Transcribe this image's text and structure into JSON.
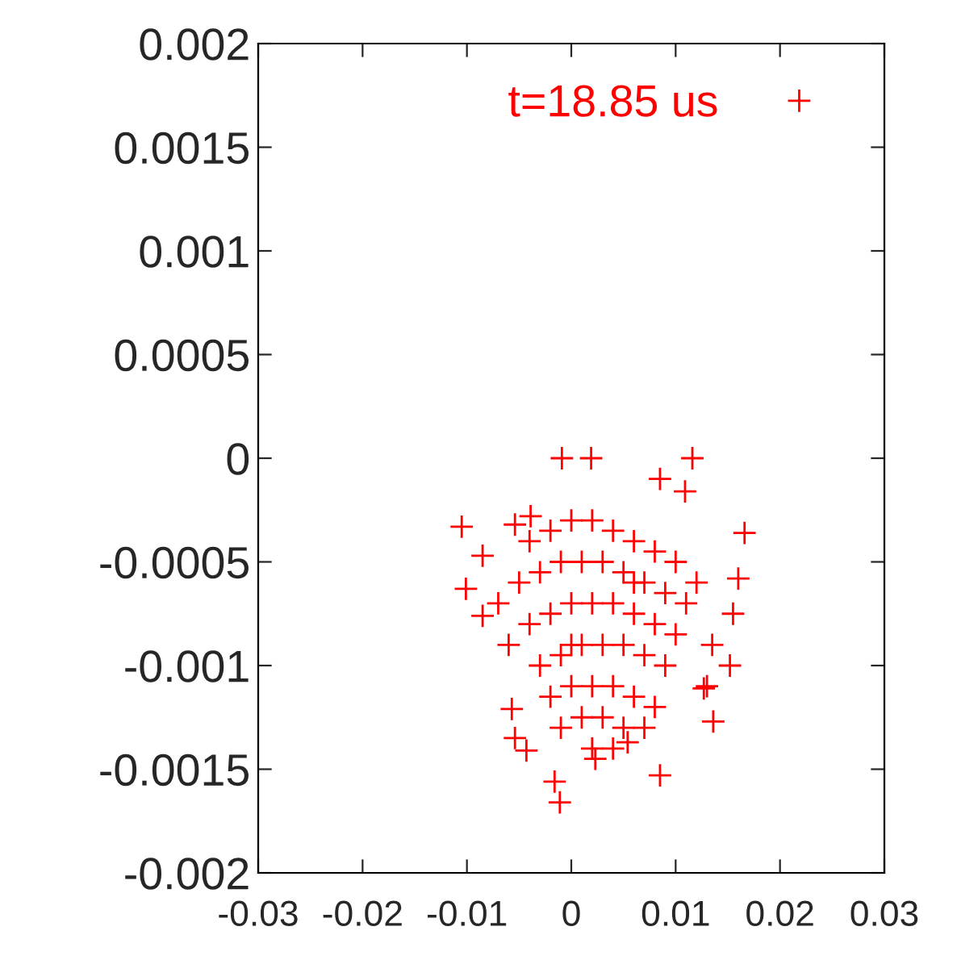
{
  "chart_data": {
    "type": "scatter",
    "xlim": [
      -0.03,
      0.03
    ],
    "ylim": [
      -0.002,
      0.002
    ],
    "xticks": [
      -0.03,
      -0.02,
      -0.01,
      0,
      0.01,
      0.02,
      0.03
    ],
    "yticks": [
      -0.002,
      -0.0015,
      -0.001,
      -0.0005,
      0,
      0.0005,
      0.001,
      0.0015,
      0.002
    ],
    "marker": "cross",
    "legend": "top right",
    "grid": false,
    "series": [
      {
        "name": "t=18.85 us",
        "color": "#ff0000",
        "x": [
          -0.0105,
          -0.0009,
          0.0116,
          0.0166,
          0.016,
          0.0152,
          0.0136,
          0.0085,
          -0.0011,
          -0.0016,
          -0.0054,
          -0.0085,
          -0.0101,
          -0.0085,
          -0.0054,
          -0.0039,
          0.0019,
          0.0085,
          0.0109,
          0.0155,
          0.0135,
          0.0127,
          0.0054,
          0.0023,
          -0.0043,
          -0.0057,
          -0.004,
          -0.002,
          0,
          0.002,
          0.004,
          0.006,
          0.008,
          0.01,
          -0.005,
          -0.003,
          -0.001,
          0.001,
          0.003,
          0.005,
          0.007,
          0.009,
          0.011,
          -0.004,
          -0.002,
          0,
          0.002,
          0.004,
          0.006,
          0.008,
          0.01,
          -0.003,
          -0.001,
          0.001,
          0.003,
          0.005,
          0.007,
          0.009,
          -0.002,
          0,
          0.002,
          0.004,
          0.006,
          0.008,
          -0.001,
          0.001,
          0.003,
          0.005,
          0.007,
          0.002,
          0.004,
          -0.006,
          0.012,
          -0.007,
          0.013,
          0.0,
          0.006
        ],
        "values": [
          -0.00033,
          0,
          0,
          -0.00036,
          -0.00058,
          -0.001,
          -0.00127,
          -0.00153,
          -0.00166,
          -0.00156,
          -0.00135,
          -0.00076,
          -0.00063,
          -0.00047,
          -0.00032,
          -0.00028,
          0,
          -0.0001,
          -0.00016,
          -0.00075,
          -0.0009,
          -0.00111,
          -0.00137,
          -0.00145,
          -0.00141,
          -0.00121,
          -0.0004,
          -0.00035,
          -0.0003,
          -0.0003,
          -0.00035,
          -0.0004,
          -0.00045,
          -0.0005,
          -0.0006,
          -0.00055,
          -0.0005,
          -0.0005,
          -0.0005,
          -0.00055,
          -0.0006,
          -0.00065,
          -0.0007,
          -0.0008,
          -0.00075,
          -0.0007,
          -0.0007,
          -0.0007,
          -0.00075,
          -0.0008,
          -0.00085,
          -0.001,
          -0.00095,
          -0.0009,
          -0.0009,
          -0.0009,
          -0.00095,
          -0.001,
          -0.00115,
          -0.0011,
          -0.0011,
          -0.0011,
          -0.00115,
          -0.0012,
          -0.0013,
          -0.00125,
          -0.00125,
          -0.0013,
          -0.0013,
          -0.0014,
          -0.0014,
          -0.0009,
          -0.0006,
          -0.0007,
          -0.0011,
          -0.0009,
          -0.0006
        ]
      }
    ]
  }
}
